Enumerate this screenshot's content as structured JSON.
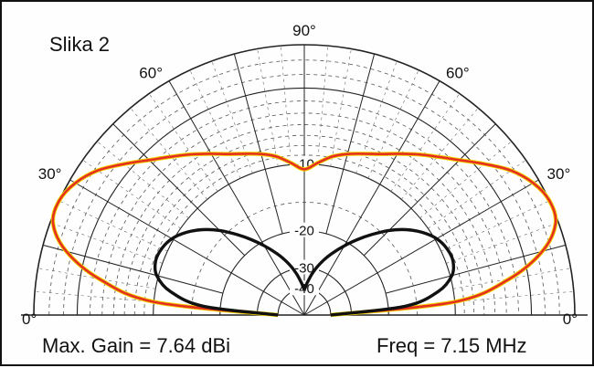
{
  "chart_data": {
    "type": "polar",
    "title": "Slika 2",
    "angle_labels": [
      "0°",
      "30°",
      "60°",
      "90°",
      "60°",
      "30°",
      "0°"
    ],
    "ring_labels": [
      "-10",
      "-20",
      "-30",
      "-40"
    ],
    "max_gain": "Max. Gain = 7.64 dBi",
    "frequency": "Freq = 7.15 MHz",
    "series": [
      {
        "color": "#e53020",
        "elevation_deg": [
          0,
          5,
          10,
          15,
          20,
          25,
          30,
          35,
          40,
          45,
          50,
          55,
          60,
          65,
          70,
          75,
          80,
          85,
          90
        ],
        "level_dB": [
          -40,
          -10,
          -4.5,
          -1.6,
          -0.2,
          0,
          -0.4,
          -1.2,
          -2.4,
          -3.6,
          -4.6,
          -5.5,
          -6.4,
          -7.2,
          -7.8,
          -8.3,
          -8.9,
          -9.8,
          -10.6
        ]
      },
      {
        "color": "#111111",
        "elevation_deg": [
          0,
          5,
          10,
          15,
          20,
          25,
          30,
          35,
          40,
          45,
          50,
          55,
          60,
          65,
          70,
          75,
          80,
          85,
          90
        ],
        "level_dB": [
          -40,
          -16.8,
          -11.8,
          -9.8,
          -9.2,
          -9.3,
          -9.8,
          -10.8,
          -12.2,
          -14,
          -16.2,
          -18.5,
          -20.9,
          -23.4,
          -26,
          -29,
          -32.5,
          -36.5,
          -40
        ]
      }
    ]
  }
}
